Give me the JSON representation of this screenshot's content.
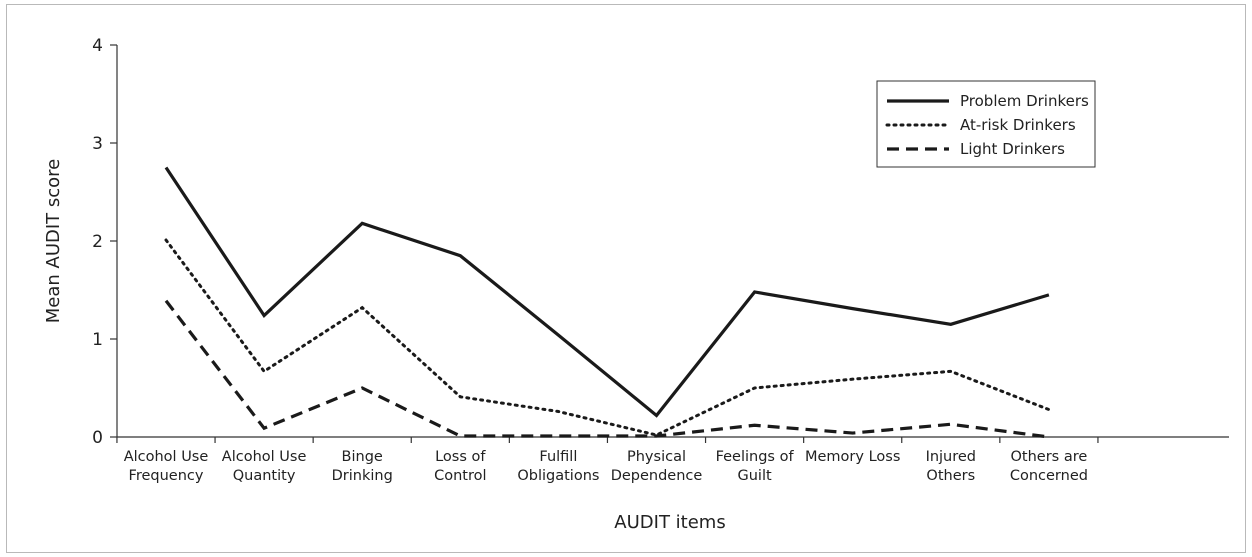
{
  "chart_data": {
    "type": "line",
    "title": "",
    "xlabel": "AUDIT items",
    "ylabel": "Mean AUDIT score",
    "ylim": [
      0,
      4
    ],
    "yticks": [
      "0",
      "1",
      "2",
      "3",
      "4"
    ],
    "grid": false,
    "legend_position": "top-right",
    "categories": [
      [
        "Alcohol Use",
        "Frequency"
      ],
      [
        "Alcohol Use",
        "Quantity"
      ],
      [
        "Binge",
        "Drinking"
      ],
      [
        "Loss of",
        "Control"
      ],
      [
        "Fulfill",
        "Obligations"
      ],
      [
        "Physical",
        "Dependence"
      ],
      [
        "Feelings of",
        "Guilt"
      ],
      [
        "Memory Loss"
      ],
      [
        "Injured",
        "Others"
      ],
      [
        "Others are",
        "Concerned"
      ]
    ],
    "series": [
      {
        "name": "Problem Drinkers",
        "style": "solid",
        "color": "#1a1a1a",
        "values": [
          2.75,
          1.24,
          2.18,
          1.85,
          1.04,
          0.22,
          1.48,
          1.31,
          1.15,
          1.45
        ]
      },
      {
        "name": "At-risk Drinkers",
        "style": "dotted",
        "color": "#1a1a1a",
        "values": [
          2.01,
          0.67,
          1.32,
          0.41,
          0.26,
          0.02,
          0.5,
          0.59,
          0.67,
          0.28
        ]
      },
      {
        "name": "Light Drinkers",
        "style": "dashed",
        "color": "#1a1a1a",
        "values": [
          1.39,
          0.09,
          0.5,
          0.01,
          0.01,
          0.01,
          0.12,
          0.04,
          0.13,
          0.0
        ]
      }
    ]
  }
}
